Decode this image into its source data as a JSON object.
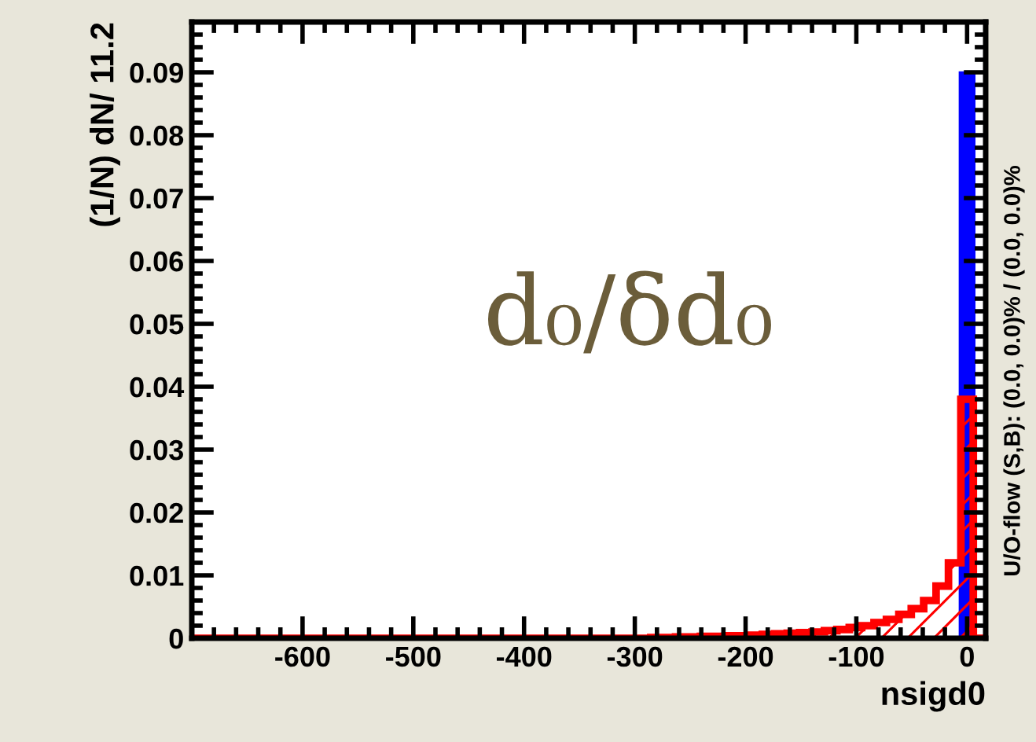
{
  "chart_data": {
    "type": "histogram",
    "xlabel": "nsigd0",
    "ylabel": "(1/N) dN/ 11.2",
    "bins": [
      -700,
      -688.8,
      -677.6,
      -666.4,
      -655.2,
      -644,
      -632.8,
      -621.6,
      -610.4,
      -599.2,
      -588,
      -576.8,
      -565.6,
      -554.4,
      -543.2,
      -532,
      -520.8,
      -509.6,
      -498.4,
      -487.2,
      -476,
      -464.8,
      -453.6,
      -442.4,
      -431.2,
      -420,
      -408.8,
      -397.6,
      -386.4,
      -375.2,
      -364,
      -352.8,
      -341.6,
      -330.4,
      -319.2,
      -308,
      -296.8,
      -285.6,
      -274.4,
      -263.2,
      -252,
      -240.8,
      -229.6,
      -218.4,
      -207.2,
      -196,
      -184.8,
      -173.6,
      -162.4,
      -151.2,
      -140,
      -128.8,
      -117.6,
      -106.4,
      -95.2,
      -84,
      -72.8,
      -61.6,
      -50.4,
      -39.2,
      -28,
      -16.8,
      -5.6,
      5.6,
      16.8
    ],
    "series": [
      {
        "color": "#0000ff",
        "values": [
          0,
          0,
          0,
          0,
          0,
          0,
          0,
          0,
          0,
          0,
          0,
          0,
          0,
          0,
          0,
          0,
          0,
          0,
          0,
          0,
          0,
          0,
          0,
          0,
          0,
          0,
          0,
          0,
          0,
          0,
          0,
          0,
          0,
          0,
          0,
          0,
          0,
          0,
          0,
          0,
          0,
          0,
          0,
          0,
          0,
          0,
          0,
          0,
          0,
          0,
          0,
          0,
          0,
          0,
          0,
          0,
          0,
          0,
          0,
          0,
          0,
          0,
          0.0898,
          0
        ]
      },
      {
        "color": "#ff0000",
        "values": [
          0,
          0,
          0,
          0,
          0,
          0,
          0,
          0,
          0,
          0,
          0,
          0,
          0,
          0,
          0,
          0,
          0,
          0,
          0,
          0,
          0,
          0,
          0,
          0,
          0,
          0,
          0,
          0,
          0,
          0,
          0,
          0,
          0,
          0,
          0,
          0,
          0,
          0.0001,
          0.0001,
          0.0002,
          0.0002,
          0.0003,
          0.0003,
          0.0004,
          0.0004,
          0.0005,
          0.0006,
          0.0007,
          0.0008,
          0.0009,
          0.001,
          0.0012,
          0.0014,
          0.0017,
          0.002,
          0.0025,
          0.003,
          0.0038,
          0.0047,
          0.006,
          0.0083,
          0.012,
          0.038,
          0
        ]
      }
    ],
    "xlim": [
      -700,
      16.8
    ],
    "xticks": [
      -600,
      -500,
      -400,
      -300,
      -200,
      -100,
      0
    ],
    "ylim": [
      0,
      0.098
    ],
    "yticks": [
      0,
      0.01,
      0.02,
      0.03,
      0.04,
      0.05,
      0.06,
      0.07,
      0.08,
      0.09
    ],
    "grid": false,
    "legend": false,
    "annotations": [
      "d₀/δd₀",
      "U/O-flow (S,B): (0.0, 0.0)% / (0.0, 0.0)%"
    ]
  }
}
